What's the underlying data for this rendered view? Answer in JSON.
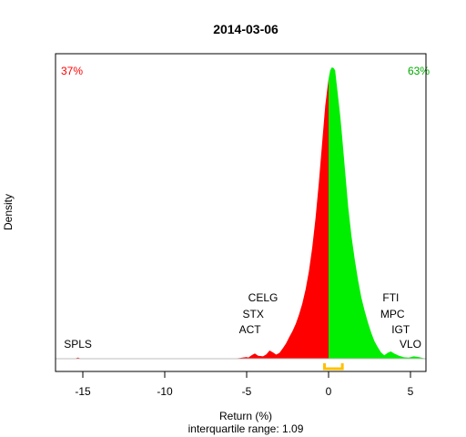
{
  "chart_data": {
    "type": "area",
    "title": "2014-03-06",
    "xlabel": "Return (%)",
    "subtitle": "interquartile range: 1.09",
    "ylabel": "Density",
    "xlim": [
      -16.5,
      6.1
    ],
    "ylim": [
      0,
      1.0
    ],
    "x_ticks": [
      "-15",
      "-10",
      "-5",
      "0",
      "5"
    ],
    "negative_share": "37%",
    "positive_share": "63%",
    "colors": {
      "negative": "#ff0000",
      "positive": "#00ee00",
      "iqr": "#ffc000",
      "baseline": "#bebebe"
    },
    "iqr_range": [
      -0.25,
      0.84
    ],
    "density": {
      "x": [
        -16.4,
        -15.5,
        -15.3,
        -15.1,
        -14.5,
        -12,
        -8,
        -6,
        -5.5,
        -5,
        -4.9,
        -4.7,
        -4.5,
        -4.3,
        -4.0,
        -3.8,
        -3.6,
        -3.4,
        -3.2,
        -3.0,
        -2.8,
        -2.6,
        -2.4,
        -2.2,
        -2.0,
        -1.8,
        -1.6,
        -1.4,
        -1.2,
        -1.0,
        -0.8,
        -0.6,
        -0.4,
        -0.2,
        0,
        0.1,
        0.2,
        0.3,
        0.35,
        0.4,
        0.5,
        0.6,
        0.7,
        0.8,
        1.0,
        1.2,
        1.4,
        1.6,
        1.8,
        2.0,
        2.2,
        2.4,
        2.6,
        2.8,
        3.0,
        3.2,
        3.4,
        3.6,
        3.8,
        4.0,
        4.3,
        4.6,
        4.9,
        5.2,
        5.5,
        5.8,
        6.0
      ],
      "y": [
        0,
        0,
        0.004,
        0,
        0,
        0,
        0,
        0,
        0.002,
        0.006,
        0.004,
        0.012,
        0.018,
        0.01,
        0.008,
        0.015,
        0.028,
        0.022,
        0.014,
        0.02,
        0.035,
        0.052,
        0.074,
        0.095,
        0.12,
        0.152,
        0.19,
        0.238,
        0.3,
        0.38,
        0.48,
        0.6,
        0.735,
        0.87,
        0.96,
        0.99,
        1.0,
        0.998,
        0.994,
        0.99,
        0.94,
        0.89,
        0.84,
        0.78,
        0.65,
        0.52,
        0.42,
        0.34,
        0.27,
        0.21,
        0.165,
        0.125,
        0.09,
        0.06,
        0.04,
        0.022,
        0.012,
        0.02,
        0.025,
        0.018,
        0.01,
        0.005,
        0.004,
        0.008,
        0.006,
        0.002,
        0
      ]
    },
    "annotations": [
      {
        "label": "SPLS",
        "x": -15.3,
        "row": 1
      },
      {
        "label": "CELG",
        "x": -4.0,
        "row": 4
      },
      {
        "label": "STX",
        "x": -4.6,
        "row": 3
      },
      {
        "label": "ACT",
        "x": -4.8,
        "row": 2
      },
      {
        "label": "FTI",
        "x": 3.8,
        "row": 4
      },
      {
        "label": "MPC",
        "x": 3.9,
        "row": 3
      },
      {
        "label": "IGT",
        "x": 4.4,
        "row": 2
      },
      {
        "label": "VLO",
        "x": 5.0,
        "row": 1
      }
    ]
  }
}
